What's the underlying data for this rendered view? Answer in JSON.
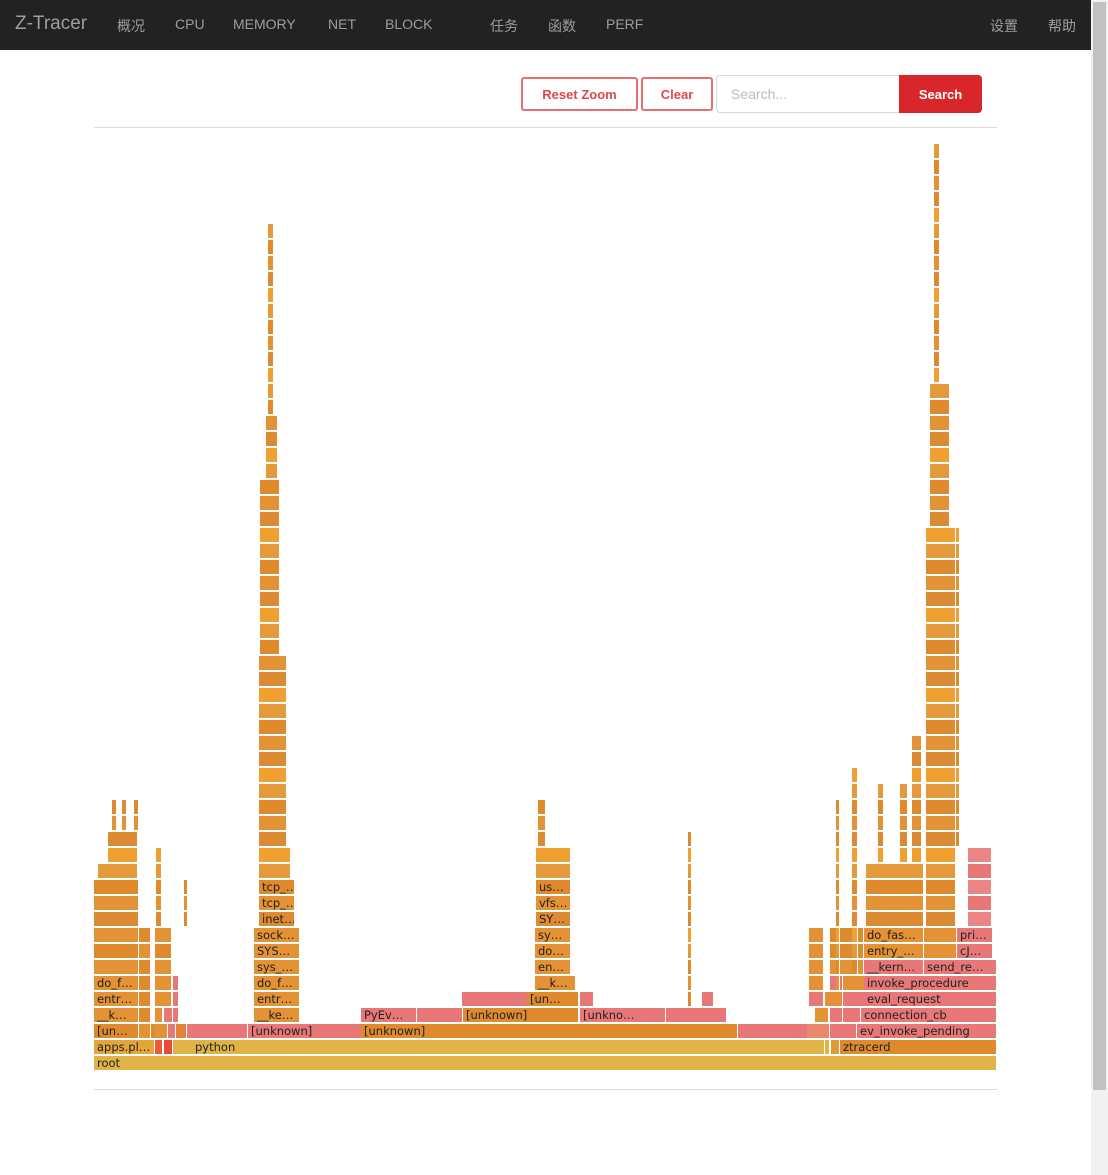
{
  "navbar": {
    "brand": "Z-Tracer",
    "items": [
      "概况",
      "CPU",
      "MEMORY",
      "NET",
      "BLOCK",
      "任务",
      "函数",
      "PERF"
    ],
    "right_items": [
      "设置",
      "帮助"
    ]
  },
  "toolbar": {
    "reset_zoom_label": "Reset Zoom",
    "clear_label": "Clear",
    "search_placeholder": "Search...",
    "search_value": "",
    "search_button_label": "Search"
  },
  "colors": {
    "navbar_bg": "#222222",
    "accent_red": "#d9262b",
    "frame_yellow": "#e0b348",
    "frame_orange": "#e08a2e",
    "frame_salmon": "#e87878"
  },
  "flamegraph": {
    "frames": [
      {
        "label": "root",
        "depth": 0,
        "start": 0,
        "end": 1,
        "color": "#e0b348"
      },
      {
        "label": "apps.pl…",
        "depth": 1,
        "start": 0,
        "end": 0.068,
        "color": "#e2a63a"
      },
      {
        "label": "",
        "depth": 1,
        "start": 0.068,
        "end": 0.077,
        "color": "#e85a3a"
      },
      {
        "label": "",
        "depth": 1,
        "start": 0.077,
        "end": 0.087,
        "color": "#ea4a38"
      },
      {
        "label": "",
        "depth": 1,
        "start": 0.087,
        "end": 0.109,
        "color": "#e0b348"
      },
      {
        "label": "python",
        "depth": 1,
        "start": 0.109,
        "end": 0.81,
        "color": "#e0b348"
      },
      {
        "label": "",
        "depth": 1,
        "start": 0.81,
        "end": 0.816,
        "color": "#e0b348"
      },
      {
        "label": "",
        "depth": 1,
        "start": 0.816,
        "end": 0.826,
        "color": "#e09838"
      },
      {
        "label": "ztracerd",
        "depth": 1,
        "start": 0.826,
        "end": 1,
        "color": "#e08a2e"
      },
      {
        "label": "[un…",
        "depth": 2,
        "start": 0,
        "end": 0.05,
        "color": "#e08a2e"
      },
      {
        "label": "",
        "depth": 2,
        "start": 0.05,
        "end": 0.063,
        "color": "#e39236"
      },
      {
        "label": "",
        "depth": 2,
        "start": 0.063,
        "end": 0.068,
        "color": "#e08a2e"
      },
      {
        "label": "",
        "depth": 2,
        "start": 0.068,
        "end": 0.082,
        "color": "#e39236"
      },
      {
        "label": "",
        "depth": 2,
        "start": 0.082,
        "end": 0.091,
        "color": "#e87878"
      },
      {
        "label": "",
        "depth": 2,
        "start": 0.091,
        "end": 0.103,
        "color": "#e0823a"
      },
      {
        "label": "",
        "depth": 2,
        "start": 0.103,
        "end": 0.17,
        "color": "#e87878"
      },
      {
        "label": "[unknown]",
        "depth": 2,
        "start": 0.17,
        "end": 0.296,
        "color": "#e87878"
      },
      {
        "label": "[unknown]",
        "depth": 2,
        "start": 0.296,
        "end": 0.713,
        "color": "#e08a2e"
      },
      {
        "label": "",
        "depth": 2,
        "start": 0.713,
        "end": 0.79,
        "color": "#e87878"
      },
      {
        "label": "",
        "depth": 2,
        "start": 0.79,
        "end": 0.815,
        "color": "#e88a6a"
      },
      {
        "label": "",
        "depth": 2,
        "start": 0.815,
        "end": 0.845,
        "color": "#e87878"
      },
      {
        "label": "ev_invoke_pending",
        "depth": 2,
        "start": 0.845,
        "end": 1,
        "color": "#e87878"
      },
      {
        "label": "__k…",
        "depth": 3,
        "start": 0,
        "end": 0.05,
        "color": "#e39236"
      },
      {
        "label": "",
        "depth": 3,
        "start": 0.05,
        "end": 0.063,
        "color": "#e08a2e"
      },
      {
        "label": "",
        "depth": 3,
        "start": 0.068,
        "end": 0.077,
        "color": "#e39236"
      },
      {
        "label": "",
        "depth": 3,
        "start": 0.077,
        "end": 0.087,
        "color": "#e87878"
      },
      {
        "label": "",
        "depth": 3,
        "start": 0.087,
        "end": 0.094,
        "color": "#e87878"
      },
      {
        "label": "__ke…",
        "depth": 3,
        "start": 0.177,
        "end": 0.228,
        "color": "#e39236"
      },
      {
        "label": "PyEv…",
        "depth": 3,
        "start": 0.296,
        "end": 0.358,
        "color": "#e87878"
      },
      {
        "label": "",
        "depth": 3,
        "start": 0.358,
        "end": 0.409,
        "color": "#e87878"
      },
      {
        "label": "[unknown]",
        "depth": 3,
        "start": 0.409,
        "end": 0.538,
        "color": "#e08a2e"
      },
      {
        "label": "[unkno…",
        "depth": 3,
        "start": 0.538,
        "end": 0.633,
        "color": "#e87878"
      },
      {
        "label": "",
        "depth": 3,
        "start": 0.633,
        "end": 0.7,
        "color": "#e87878"
      },
      {
        "label": "",
        "depth": 3,
        "start": 0.799,
        "end": 0.815,
        "color": "#e39236"
      },
      {
        "label": "",
        "depth": 3,
        "start": 0.815,
        "end": 0.829,
        "color": "#e87878"
      },
      {
        "label": "",
        "depth": 3,
        "start": 0.829,
        "end": 0.849,
        "color": "#e87878"
      },
      {
        "label": "connection_cb",
        "depth": 3,
        "start": 0.849,
        "end": 1,
        "color": "#e87878"
      },
      {
        "label": "entr…",
        "depth": 4,
        "start": 0,
        "end": 0.05,
        "color": "#e39236"
      },
      {
        "label": "",
        "depth": 4,
        "start": 0.05,
        "end": 0.063,
        "color": "#e08a2e"
      },
      {
        "label": "",
        "depth": 4,
        "start": 0.068,
        "end": 0.087,
        "color": "#e39236"
      },
      {
        "label": "",
        "depth": 4,
        "start": 0.087,
        "end": 0.094,
        "color": "#e87878"
      },
      {
        "label": "entr…",
        "depth": 4,
        "start": 0.177,
        "end": 0.228,
        "color": "#e39236"
      },
      {
        "label": "",
        "depth": 4,
        "start": 0.407,
        "end": 0.48,
        "color": "#e87878"
      },
      {
        "label": "[un…",
        "depth": 4,
        "start": 0.48,
        "end": 0.538,
        "color": "#e08a2e"
      },
      {
        "label": "",
        "depth": 4,
        "start": 0.538,
        "end": 0.554,
        "color": "#e87878"
      },
      {
        "label": "",
        "depth": 4,
        "start": 0.673,
        "end": 0.686,
        "color": "#e87878"
      },
      {
        "label": "",
        "depth": 4,
        "start": 0.792,
        "end": 0.809,
        "color": "#e87878"
      },
      {
        "label": "",
        "depth": 4,
        "start": 0.809,
        "end": 0.829,
        "color": "#e39236"
      },
      {
        "label": "",
        "depth": 4,
        "start": 0.829,
        "end": 0.853,
        "color": "#e87878"
      },
      {
        "label": "eval_request",
        "depth": 4,
        "start": 0.853,
        "end": 1,
        "color": "#e87878"
      },
      {
        "label": "do_f…",
        "depth": 5,
        "start": 0,
        "end": 0.05,
        "color": "#e39236"
      },
      {
        "label": "",
        "depth": 5,
        "start": 0.05,
        "end": 0.063,
        "color": "#e08a2e"
      },
      {
        "label": "",
        "depth": 5,
        "start": 0.068,
        "end": 0.087,
        "color": "#e39236"
      },
      {
        "label": "",
        "depth": 5,
        "start": 0.087,
        "end": 0.094,
        "color": "#e87878"
      },
      {
        "label": "do_f…",
        "depth": 5,
        "start": 0.177,
        "end": 0.228,
        "color": "#e39236"
      },
      {
        "label": "__k…",
        "depth": 5,
        "start": 0.488,
        "end": 0.533,
        "color": "#e39236"
      },
      {
        "label": "",
        "depth": 5,
        "start": 0.792,
        "end": 0.809,
        "color": "#e39236"
      },
      {
        "label": "",
        "depth": 5,
        "start": 0.815,
        "end": 0.829,
        "color": "#e87878"
      },
      {
        "label": "",
        "depth": 5,
        "start": 0.829,
        "end": 0.853,
        "color": "#e39236"
      },
      {
        "label": "invoke_procedure",
        "depth": 5,
        "start": 0.853,
        "end": 1,
        "color": "#e87878"
      },
      {
        "label": "",
        "depth": 6,
        "start": 0,
        "end": 0.05,
        "color": "#e39236"
      },
      {
        "label": "",
        "depth": 6,
        "start": 0.05,
        "end": 0.063,
        "color": "#e08a2e"
      },
      {
        "label": "",
        "depth": 6,
        "start": 0.068,
        "end": 0.087,
        "color": "#e39236"
      },
      {
        "label": "sys_…",
        "depth": 6,
        "start": 0.177,
        "end": 0.228,
        "color": "#e39236"
      },
      {
        "label": "en…",
        "depth": 6,
        "start": 0.488,
        "end": 0.528,
        "color": "#e39236"
      },
      {
        "label": "",
        "depth": 6,
        "start": 0.792,
        "end": 0.809,
        "color": "#e39236"
      },
      {
        "label": "",
        "depth": 6,
        "start": 0.815,
        "end": 0.853,
        "color": "#e39236"
      },
      {
        "label": "__kern…",
        "depth": 6,
        "start": 0.853,
        "end": 0.919,
        "color": "#e87878"
      },
      {
        "label": "send_re…",
        "depth": 6,
        "start": 0.919,
        "end": 1,
        "color": "#e87878"
      },
      {
        "label": "",
        "depth": 7,
        "start": 0,
        "end": 0.05,
        "color": "#e08a2e"
      },
      {
        "label": "",
        "depth": 7,
        "start": 0.05,
        "end": 0.063,
        "color": "#e39236"
      },
      {
        "label": "",
        "depth": 7,
        "start": 0.068,
        "end": 0.087,
        "color": "#e08a2e"
      },
      {
        "label": "SYS…",
        "depth": 7,
        "start": 0.177,
        "end": 0.228,
        "color": "#e39236"
      },
      {
        "label": "do…",
        "depth": 7,
        "start": 0.488,
        "end": 0.528,
        "color": "#e39236"
      },
      {
        "label": "",
        "depth": 7,
        "start": 0.792,
        "end": 0.809,
        "color": "#e39236"
      },
      {
        "label": "",
        "depth": 7,
        "start": 0.815,
        "end": 0.853,
        "color": "#e08a2e"
      },
      {
        "label": "entry_…",
        "depth": 7,
        "start": 0.853,
        "end": 0.919,
        "color": "#e39236"
      },
      {
        "label": "",
        "depth": 7,
        "start": 0.919,
        "end": 0.956,
        "color": "#e39236"
      },
      {
        "label": "cJ…",
        "depth": 7,
        "start": 0.956,
        "end": 0.996,
        "color": "#e87878"
      },
      {
        "label": "",
        "depth": 8,
        "start": 0,
        "end": 0.05,
        "color": "#e39236"
      },
      {
        "label": "",
        "depth": 8,
        "start": 0.05,
        "end": 0.063,
        "color": "#e08a2e"
      },
      {
        "label": "",
        "depth": 8,
        "start": 0.068,
        "end": 0.087,
        "color": "#e39236"
      },
      {
        "label": "sock…",
        "depth": 8,
        "start": 0.177,
        "end": 0.228,
        "color": "#e39236"
      },
      {
        "label": "sy…",
        "depth": 8,
        "start": 0.488,
        "end": 0.528,
        "color": "#e39236"
      },
      {
        "label": "",
        "depth": 8,
        "start": 0.792,
        "end": 0.809,
        "color": "#e39236"
      },
      {
        "label": "",
        "depth": 8,
        "start": 0.815,
        "end": 0.853,
        "color": "#e08a2e"
      },
      {
        "label": "do_fas…",
        "depth": 8,
        "start": 0.853,
        "end": 0.919,
        "color": "#e39236"
      },
      {
        "label": "",
        "depth": 8,
        "start": 0.919,
        "end": 0.956,
        "color": "#e39236"
      },
      {
        "label": "pri…",
        "depth": 8,
        "start": 0.956,
        "end": 0.996,
        "color": "#e87878"
      }
    ]
  }
}
